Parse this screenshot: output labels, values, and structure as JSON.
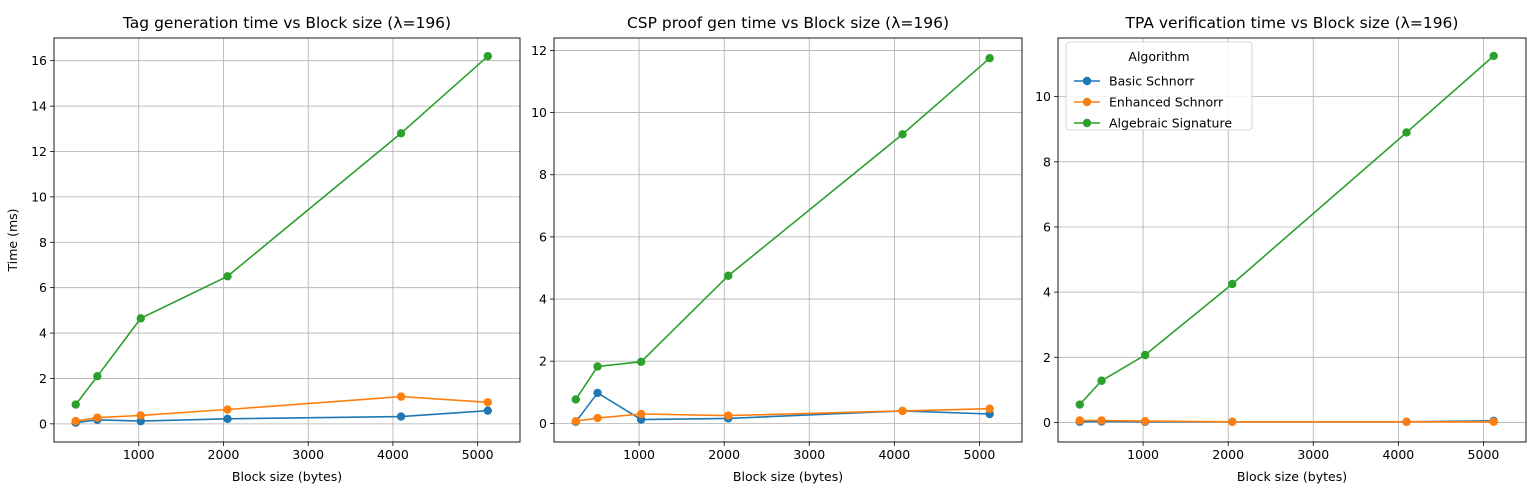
{
  "chart_data": [
    {
      "type": "line",
      "title": "Tag generation time vs Block size (λ=196)",
      "xlabel": "Block size (bytes)",
      "ylabel": "Time (ms)",
      "x": [
        256,
        512,
        1024,
        2048,
        4096,
        5120
      ],
      "xlim": [
        0,
        5500
      ],
      "ylim": [
        -0.8,
        17
      ],
      "xticks": [
        1000,
        2000,
        3000,
        4000,
        5000
      ],
      "yticks": [
        0,
        2,
        4,
        6,
        8,
        10,
        12,
        14,
        16
      ],
      "grid": true,
      "legend": null,
      "series": [
        {
          "name": "Basic Schnorr",
          "color": "#1f77b4",
          "values": [
            0.05,
            0.18,
            0.12,
            0.22,
            0.32,
            0.58
          ]
        },
        {
          "name": "Enhanced Schnorr",
          "color": "#ff7f0e",
          "values": [
            0.12,
            0.27,
            0.37,
            0.63,
            1.2,
            0.95
          ]
        },
        {
          "name": "Algebraic Signature",
          "color": "#2ca02c",
          "values": [
            0.85,
            2.1,
            4.65,
            6.5,
            12.8,
            16.2
          ]
        }
      ]
    },
    {
      "type": "line",
      "title": "CSP proof gen time vs Block size (λ=196)",
      "xlabel": "Block size (bytes)",
      "ylabel": "",
      "x": [
        256,
        512,
        1024,
        2048,
        4096,
        5120
      ],
      "xlim": [
        0,
        5500
      ],
      "ylim": [
        -0.6,
        12.4
      ],
      "xticks": [
        1000,
        2000,
        3000,
        4000,
        5000
      ],
      "yticks": [
        0,
        2,
        4,
        6,
        8,
        10,
        12
      ],
      "grid": true,
      "legend": null,
      "series": [
        {
          "name": "Basic Schnorr",
          "color": "#1f77b4",
          "values": [
            0.05,
            0.98,
            0.12,
            0.16,
            0.4,
            0.3
          ]
        },
        {
          "name": "Enhanced Schnorr",
          "color": "#ff7f0e",
          "values": [
            0.07,
            0.17,
            0.3,
            0.25,
            0.4,
            0.47
          ]
        },
        {
          "name": "Algebraic Signature",
          "color": "#2ca02c",
          "values": [
            0.77,
            1.83,
            1.98,
            4.75,
            9.3,
            11.75
          ]
        }
      ]
    },
    {
      "type": "line",
      "title": "TPA verification time vs Block size (λ=196)",
      "xlabel": "Block size (bytes)",
      "ylabel": "",
      "x": [
        256,
        512,
        1024,
        2048,
        4096,
        5120
      ],
      "xlim": [
        0,
        5500
      ],
      "ylim": [
        -0.6,
        11.8
      ],
      "xticks": [
        1000,
        2000,
        3000,
        4000,
        5000
      ],
      "yticks": [
        0,
        2,
        4,
        6,
        8,
        10
      ],
      "grid": true,
      "legend": {
        "title": "Algorithm",
        "position": "top-left"
      },
      "series": [
        {
          "name": "Basic Schnorr",
          "color": "#1f77b4",
          "values": [
            0.02,
            0.03,
            0.02,
            0.02,
            0.02,
            0.05
          ]
        },
        {
          "name": "Enhanced Schnorr",
          "color": "#ff7f0e",
          "values": [
            0.06,
            0.06,
            0.04,
            0.02,
            0.02,
            0.02
          ]
        },
        {
          "name": "Algebraic Signature",
          "color": "#2ca02c",
          "values": [
            0.55,
            1.28,
            2.07,
            4.25,
            8.9,
            11.25
          ]
        }
      ]
    }
  ]
}
